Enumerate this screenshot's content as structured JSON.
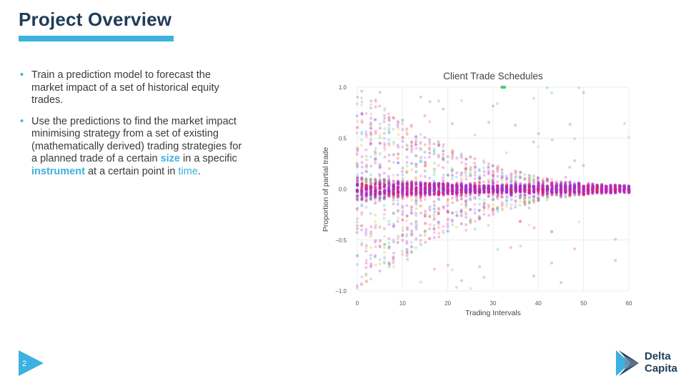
{
  "slide": {
    "title": "Project Overview",
    "page_number": "2",
    "bullets": {
      "b1": "Train a prediction model to forecast the market impact of a set of historical equity trades.",
      "b2_part1": "Use the predictions to find the market impact minimising strategy from a set of existing (mathematically derived) trading strategies for a planned trade of a certain ",
      "b2_size": "size",
      "b2_part2": " in a specific ",
      "b2_instrument": "instrument",
      "b2_part3": " at a certain point in ",
      "b2_time": "time",
      "b2_end": "."
    },
    "logo": {
      "line1": "Delta",
      "line2": "Capita",
      "colors": [
        "#3db1df",
        "#1f3c57",
        "#6f8aa3"
      ]
    },
    "accent_color": "#3db1df",
    "title_color": "#1f3c57"
  },
  "chart_data": {
    "type": "scatter",
    "title": "Client Trade Schedules",
    "xlabel": "Trading Intervals",
    "ylabel": "Proportion of partial trade",
    "xlim": [
      0,
      60
    ],
    "ylim": [
      -1.0,
      1.0
    ],
    "x_ticks": [
      "0",
      "10",
      "20",
      "30",
      "40",
      "50",
      "60"
    ],
    "y_ticks": [
      "1.0",
      "0.5",
      "0.0",
      "−0.5",
      "−1.0"
    ],
    "grid": true,
    "x_range": [
      0,
      60
    ],
    "y_spread_at_start": 1.0,
    "y_spread_at_end": 0.04,
    "highlighted_points": [
      [
        32.0,
        1.0
      ],
      [
        32.5,
        1.0
      ]
    ],
    "point_colors": [
      "#e0245e",
      "#c21ec7",
      "#7b3fe0",
      "#3aa0e8",
      "#38c96b",
      "#f0a020",
      "#8e44ad",
      "#ff4d88"
    ]
  }
}
